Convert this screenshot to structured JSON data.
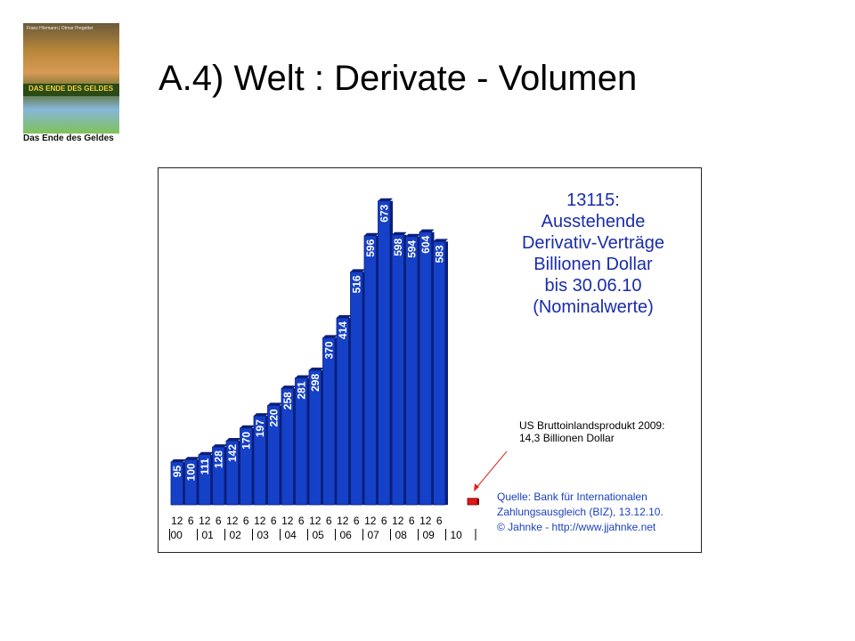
{
  "slide": {
    "title": "A.4)   Welt : Derivate - Volumen",
    "book_caption": "Das Ende des Geldes",
    "book_cover_title": "DAS ENDE DES GELDES",
    "book_authors": "Franz Hörmann | Otmar Pregetter"
  },
  "chart_data": {
    "type": "bar",
    "heading_lines": [
      "13115:",
      "Ausstehende",
      "Derivativ-Verträge",
      "Billionen Dollar",
      "bis 30.06.10",
      "(Nominalwerte)"
    ],
    "values": [
      95,
      100,
      111,
      128,
      142,
      170,
      197,
      220,
      258,
      281,
      298,
      370,
      414,
      516,
      596,
      673,
      598,
      594,
      604,
      583
    ],
    "month_ticks": [
      "12",
      "6",
      "12",
      "6",
      "12",
      "6",
      "12",
      "6",
      "12",
      "6",
      "12",
      "6",
      "12",
      "6",
      "12",
      "6",
      "12",
      "6",
      "12",
      "6"
    ],
    "year_ticks": [
      "00",
      "01",
      "02",
      "03",
      "04",
      "05",
      "06",
      "07",
      "08",
      "09",
      "10"
    ],
    "ylim": [
      0,
      700
    ],
    "comparison_bar": {
      "value": 14.3,
      "note_lines": [
        "US Bruttoinlandsprodukt 2009:",
        "14,3 Billionen Dollar"
      ]
    },
    "source_lines": [
      "Quelle: Bank für Internationalen",
      "Zahlungsausgleich (BIZ), 13.12.10.",
      "© Jahnke - http://www.jjahnke.net"
    ],
    "colors": {
      "bar": "#1540c8",
      "bar_dark": "#0a1f78",
      "comparison": "#e01818",
      "heading": "#1a2daa",
      "source": "#1a3fc0",
      "arrow": "#e02020"
    }
  }
}
